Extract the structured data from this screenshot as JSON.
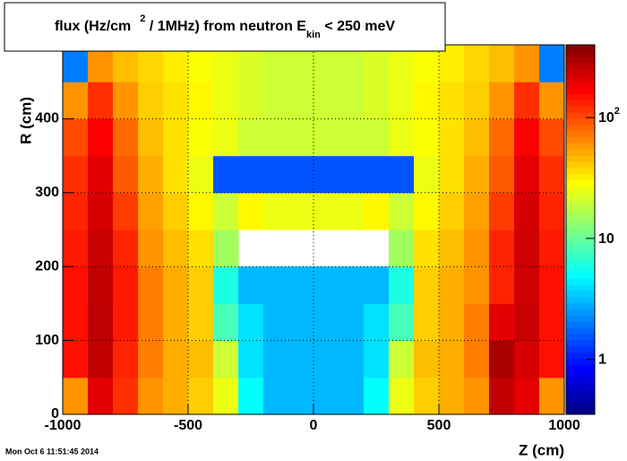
{
  "chart_data": {
    "type": "heatmap",
    "title_parts": [
      {
        "text": "flux (Hz/cm"
      },
      {
        "text": "2",
        "style": "sup"
      },
      {
        "text": " / 1MHz) from   neutron  E"
      },
      {
        "text": "kin",
        "style": "sub"
      },
      {
        "text": " < 250 meV"
      }
    ],
    "xlabel": "Z (cm)",
    "ylabel": "R (cm)",
    "timestamp": "Mon Oct  6 11:51:45 2014",
    "xbins": [
      -1000,
      -900,
      -800,
      -700,
      -600,
      -500,
      -400,
      -300,
      -200,
      -100,
      0,
      100,
      200,
      300,
      400,
      500,
      600,
      700,
      800,
      900,
      1000
    ],
    "ybins": [
      0,
      50,
      100,
      150,
      200,
      250,
      300,
      350,
      400,
      450,
      500
    ],
    "values": [
      [
        60,
        200,
        120,
        60,
        50,
        40,
        25,
        5,
        3,
        3,
        3,
        3,
        5,
        25,
        40,
        50,
        60,
        250,
        200,
        60
      ],
      [
        150,
        250,
        130,
        70,
        50,
        45,
        20,
        4,
        3,
        3,
        3,
        3,
        4,
        20,
        45,
        50,
        70,
        300,
        220,
        150
      ],
      [
        150,
        260,
        140,
        70,
        50,
        40,
        8,
        4,
        3,
        3,
        3,
        3,
        4,
        8,
        40,
        50,
        70,
        200,
        240,
        150
      ],
      [
        150,
        250,
        140,
        70,
        50,
        40,
        6,
        3,
        3,
        3,
        3,
        3,
        3,
        6,
        40,
        50,
        60,
        130,
        230,
        150
      ],
      [
        140,
        240,
        130,
        60,
        45,
        35,
        15,
        null,
        null,
        null,
        null,
        null,
        null,
        15,
        35,
        45,
        60,
        130,
        230,
        140
      ],
      [
        130,
        220,
        110,
        55,
        40,
        30,
        20,
        30,
        25,
        25,
        25,
        25,
        30,
        20,
        30,
        40,
        55,
        110,
        220,
        130
      ],
      [
        120,
        200,
        90,
        50,
        35,
        25,
        1.5,
        1.5,
        1.5,
        1.5,
        1.5,
        1.5,
        1.5,
        1.5,
        25,
        35,
        50,
        90,
        200,
        120
      ],
      [
        100,
        170,
        80,
        45,
        35,
        28,
        25,
        20,
        20,
        20,
        20,
        20,
        20,
        25,
        28,
        35,
        45,
        80,
        170,
        100
      ],
      [
        60,
        120,
        60,
        40,
        35,
        30,
        25,
        22,
        20,
        20,
        20,
        20,
        22,
        25,
        30,
        35,
        40,
        60,
        120,
        60
      ],
      [
        2,
        60,
        45,
        38,
        32,
        28,
        25,
        22,
        20,
        20,
        20,
        20,
        22,
        25,
        28,
        32,
        38,
        45,
        60,
        2
      ]
    ],
    "xlim": [
      -1000,
      1000
    ],
    "ylim": [
      0,
      500
    ],
    "zlim": [
      0.35,
      400
    ],
    "zlog": true,
    "xticks": [
      -1000,
      -500,
      0,
      500,
      1000
    ],
    "yticks": [
      0,
      100,
      200,
      300,
      400,
      500
    ],
    "zticks": [
      1,
      10,
      {
        "value": 100,
        "label": "10",
        "sup": "2"
      }
    ],
    "grid": true,
    "palette": [
      "#00007f",
      "#0000ff",
      "#0080ff",
      "#00ffff",
      "#80ff80",
      "#ffff00",
      "#ff8000",
      "#ff0000",
      "#7f0000"
    ]
  }
}
